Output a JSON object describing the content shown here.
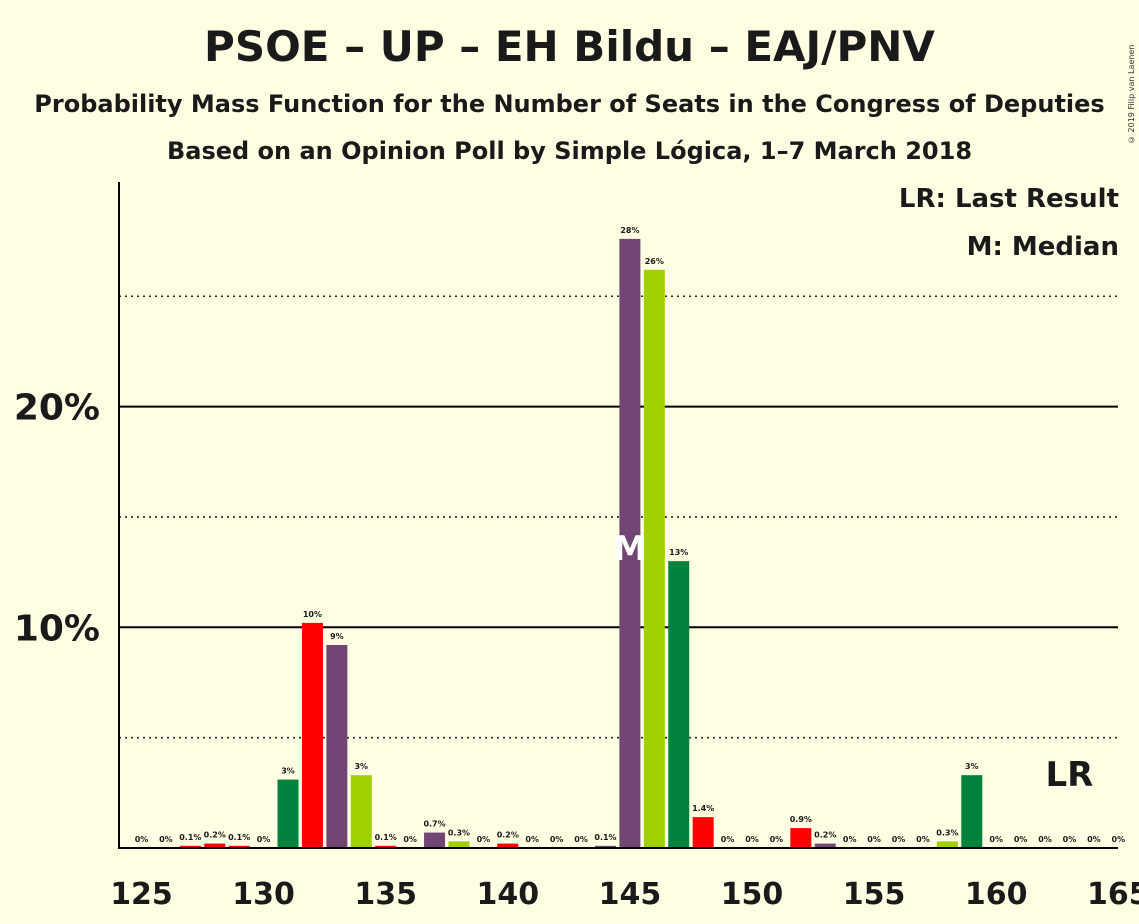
{
  "chart_data": {
    "type": "bar",
    "title": "PSOE – UP – EH Bildu – EAJ/PNV",
    "subtitle": "Probability Mass Function for the Number of Seats in the Congress of Deputies",
    "subtitle2": "Based on an Opinion Poll by Simple Lógica, 1–7 March 2018",
    "copyright": "© 2019 Filip van Laenen",
    "legend": {
      "lr": "LR: Last Result",
      "median": "M: Median"
    },
    "x": [
      125,
      126,
      127,
      128,
      129,
      130,
      131,
      132,
      133,
      134,
      135,
      136,
      137,
      138,
      139,
      140,
      141,
      142,
      143,
      144,
      145,
      146,
      147,
      148,
      149,
      150,
      151,
      152,
      153,
      154,
      155,
      156,
      157,
      158,
      159,
      160,
      161,
      162,
      163,
      164,
      165
    ],
    "values": [
      0,
      0,
      0.1,
      0.2,
      0.1,
      0,
      3.1,
      10.2,
      9.2,
      3.3,
      0.1,
      0,
      0.7,
      0.3,
      0,
      0.2,
      0,
      0,
      0,
      0.1,
      27.6,
      26.2,
      13.0,
      1.4,
      0,
      0,
      0,
      0.9,
      0.2,
      0,
      0,
      0,
      0,
      0.3,
      3.3,
      0,
      0,
      0,
      0,
      0,
      0
    ],
    "labels": [
      "0%",
      "0%",
      "0.1%",
      "0.2%",
      "0.1%",
      "0%",
      "3%",
      "10%",
      "9%",
      "3%",
      "0.1%",
      "0%",
      "0.7%",
      "0.3%",
      "0%",
      "0.2%",
      "0%",
      "0%",
      "0%",
      "0.1%",
      "28%",
      "26%",
      "13%",
      "1.4%",
      "0%",
      "0%",
      "0%",
      "0.9%",
      "0.2%",
      "0%",
      "0%",
      "0%",
      "0%",
      "0.3%",
      "3%",
      "0%",
      "0%",
      "0%",
      "0%",
      "0%",
      "0%"
    ],
    "colors": [
      "#FF0000",
      "#FF0000",
      "#FF0000",
      "#FF0000",
      "#FF0000",
      "#00843D",
      "#00843D",
      "#FF0000",
      "#724674",
      "#A1D000",
      "#FF0000",
      "#724674",
      "#724674",
      "#A1D000",
      "#FF0000",
      "#FF0000",
      "#FF0000",
      "#FF0000",
      "#FF0000",
      "#724674",
      "#724674",
      "#A1D000",
      "#00843D",
      "#FF0000",
      "#FF0000",
      "#FF0000",
      "#FF0000",
      "#FF0000",
      "#724674",
      "#FF0000",
      "#FF0000",
      "#FF0000",
      "#FF0000",
      "#A1D000",
      "#00843D",
      "#FF0000",
      "#FF0000",
      "#FF0000",
      "#FF0000",
      "#FF0000",
      "#FF0000"
    ],
    "xticks": [
      125,
      130,
      135,
      140,
      145,
      150,
      155,
      160,
      165
    ],
    "xtick_labels": [
      "125",
      "130",
      "135",
      "140",
      "145",
      "150",
      "155",
      "160",
      "165"
    ],
    "yticks": [
      10,
      20
    ],
    "ytick_labels": [
      "10%",
      "20%"
    ],
    "dotted_y": [
      5,
      15,
      25
    ],
    "ylim": [
      0,
      30
    ],
    "median_seat": 145,
    "median_label": "M",
    "last_result_seat": 163,
    "last_result_label": "LR"
  }
}
